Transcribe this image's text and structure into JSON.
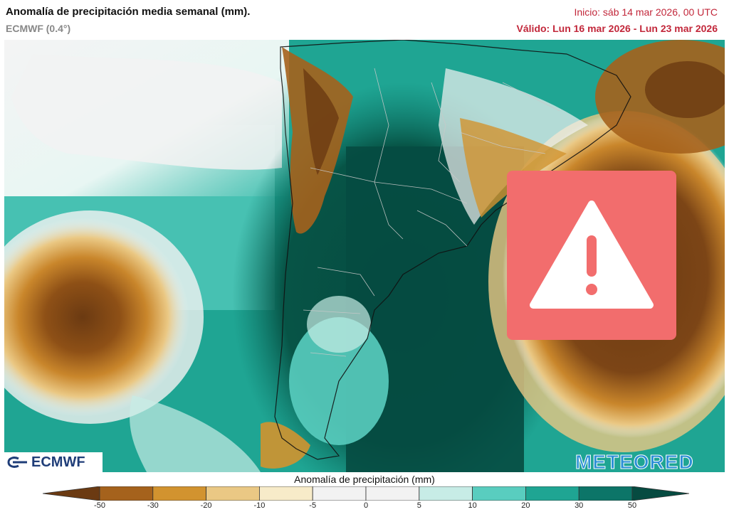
{
  "header": {
    "title": "Anomalía de precipitación media semanal (mm).",
    "model": "ECMWF (0.4°)",
    "init": "Inicio:  sáb 14 mar 2026, 00 UTC",
    "valid": "Válido: Lun 16 mar 2026 - Lun 23 mar 2026"
  },
  "logos": {
    "left": "ECMWF",
    "right": "METEORED"
  },
  "overlay": {
    "icon": "warning-triangle-icon",
    "color": "#f26d6d"
  },
  "legend": {
    "title": "Anomalía de precipitación (mm)",
    "ticks": [
      "-50",
      "-30",
      "-20",
      "-10",
      "-5",
      "0",
      "5",
      "10",
      "20",
      "30",
      "50"
    ],
    "colors": [
      "#6b3a12",
      "#a5621c",
      "#d2932f",
      "#eac884",
      "#f7ebc9",
      "#f2f2f2",
      "#f2f2f2",
      "#c7ece6",
      "#59cdbf",
      "#1fa593",
      "#0c7568",
      "#064b41"
    ]
  }
}
